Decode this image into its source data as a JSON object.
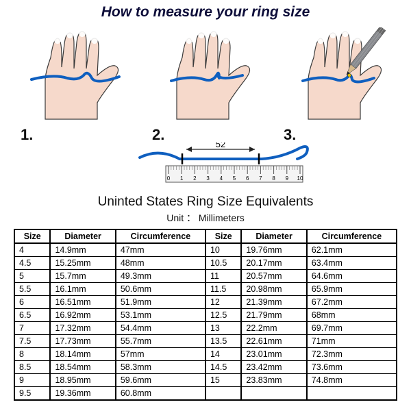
{
  "title": "How to measure your ring size",
  "steps": {
    "one": "1.",
    "two": "2.",
    "three": "3."
  },
  "ruler": {
    "measurement_label": "52",
    "ticks": [
      "0",
      "1",
      "2",
      "3",
      "4",
      "5",
      "6",
      "7",
      "8",
      "9",
      "10"
    ]
  },
  "table": {
    "title": "Uninted States Ring Size Equivalents",
    "unit_label": "Unit ： Millimeters",
    "headers": [
      "Size",
      "Diameter",
      "Circumference",
      "Size",
      "Diameter",
      "Circumference"
    ],
    "rows": [
      [
        "4",
        "14.9mm",
        "47mm",
        "10",
        "19.76mm",
        "62.1mm"
      ],
      [
        "4.5",
        "15.25mm",
        "48mm",
        "10.5",
        "20.17mm",
        "63.4mm"
      ],
      [
        "5",
        "15.7mm",
        "49.3mm",
        "11",
        "20.57mm",
        "64.6mm"
      ],
      [
        "5.5",
        "16.1mm",
        "50.6mm",
        "11.5",
        "20.98mm",
        "65.9mm"
      ],
      [
        "6",
        "16.51mm",
        "51.9mm",
        "12",
        "21.39mm",
        "67.2mm"
      ],
      [
        "6.5",
        "16.92mm",
        "53.1mm",
        "12.5",
        "21.79mm",
        "68mm"
      ],
      [
        "7",
        "17.32mm",
        "54.4mm",
        "13",
        "22.2mm",
        "69.7mm"
      ],
      [
        "7.5",
        "17.73mm",
        "55.7mm",
        "13.5",
        "22.61mm",
        "71mm"
      ],
      [
        "8",
        "18.14mm",
        "57mm",
        "14",
        "23.01mm",
        "72.3mm"
      ],
      [
        "8.5",
        "18.54mm",
        "58.3mm",
        "14.5",
        "23.42mm",
        "73.6mm"
      ],
      [
        "9",
        "18.95mm",
        "59.6mm",
        "15",
        "23.83mm",
        "74.8mm"
      ],
      [
        "9.5",
        "19.36mm",
        "60.8mm",
        "",
        "",
        ""
      ]
    ]
  },
  "colors": {
    "skin": "#f6d9cb",
    "skin_line": "#3a3a3a",
    "nail": "#ffffff",
    "string": "#0f5fbf",
    "ruler_fill": "#f0f0f0",
    "ruler_stroke": "#555",
    "arrow": "#222",
    "pencil_body": "#888a8f",
    "pencil_tip_wood": "#d7b98c",
    "pencil_lead": "#222"
  },
  "style": {
    "title_fontsize": 21,
    "step_fontsize": 22,
    "table_title_fontsize": 19,
    "unit_fontsize": 14,
    "cell_fontsize": 12.5,
    "string_stroke_width": 4
  }
}
